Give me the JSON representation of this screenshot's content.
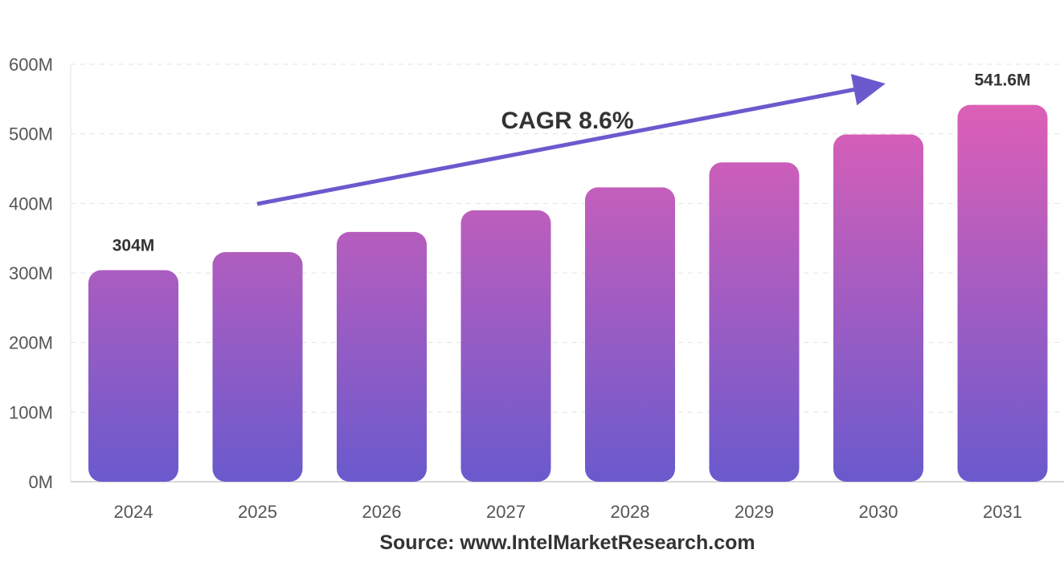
{
  "chart_data": {
    "type": "bar",
    "categories": [
      "2024",
      "2025",
      "2026",
      "2027",
      "2028",
      "2029",
      "2030",
      "2031"
    ],
    "values": [
      304,
      330,
      359,
      390,
      423,
      459,
      499,
      541.6
    ],
    "unit_suffix": "M",
    "ylim": [
      0,
      600
    ],
    "yticks": [
      "0M",
      "100M",
      "200M",
      "300M",
      "400M",
      "500M",
      "600M"
    ],
    "data_labels": [
      {
        "category": "2024",
        "text": "304M"
      },
      {
        "category": "2031",
        "text": "541.6M"
      }
    ],
    "annotation": "CAGR 8.6%",
    "grid": true,
    "legend": "none",
    "colors": {
      "bar_top": "#dd5fb6",
      "bar_bottom": "#6a5acd",
      "arrow": "#6a5acd",
      "grid": "#e3e3e3",
      "axis": "#cccccc"
    }
  },
  "source": "Source: www.IntelMarketResearch.com"
}
